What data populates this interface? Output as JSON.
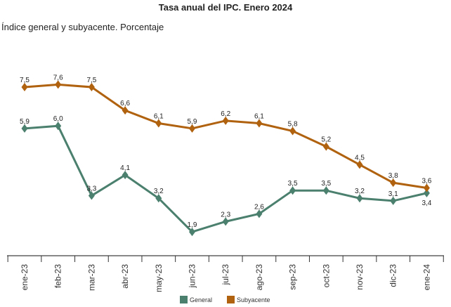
{
  "chart_data": {
    "type": "line",
    "title": "Tasa anual del IPC. Enero 2024",
    "subtitle": "Índice general y subyacente. Porcentaje",
    "categories": [
      "ene-23",
      "feb-23",
      "mar-23",
      "abr-23",
      "may-23",
      "jun-23",
      "jul-23",
      "ago-23",
      "sep-23",
      "oct-23",
      "nov-23",
      "dic-23",
      "ene-24"
    ],
    "series": [
      {
        "name": "General",
        "color": "#4b7f6e",
        "values": [
          5.9,
          6.0,
          3.3,
          4.1,
          3.2,
          1.9,
          2.3,
          2.6,
          3.5,
          3.5,
          3.2,
          3.1,
          3.4
        ]
      },
      {
        "name": "Subyacente",
        "color": "#b0620f",
        "values": [
          7.5,
          7.6,
          7.5,
          6.6,
          6.1,
          5.9,
          6.2,
          6.1,
          5.8,
          5.2,
          4.5,
          3.8,
          3.6
        ]
      }
    ],
    "ylim": [
      1,
      8.5
    ],
    "grid": false,
    "data_labels": true,
    "marker": "diamond",
    "legend": "bottom"
  }
}
